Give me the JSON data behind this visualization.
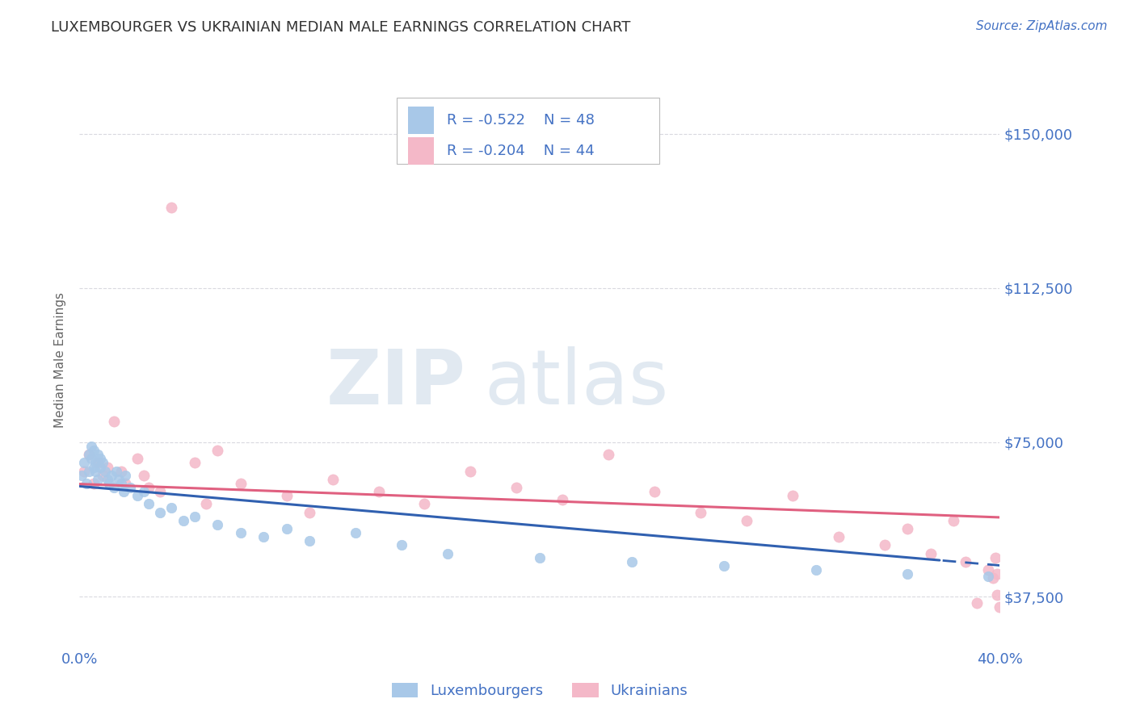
{
  "title": "LUXEMBOURGER VS UKRAINIAN MEDIAN MALE EARNINGS CORRELATION CHART",
  "source": "Source: ZipAtlas.com",
  "ylabel": "Median Male Earnings",
  "watermark_zip": "ZIP",
  "watermark_atlas": "atlas",
  "xlim": [
    0.0,
    0.4
  ],
  "ylim": [
    25000,
    165000
  ],
  "yticks": [
    37500,
    75000,
    112500,
    150000
  ],
  "ytick_labels": [
    "$37,500",
    "$75,000",
    "$112,500",
    "$150,000"
  ],
  "xticks": [
    0.0,
    0.05,
    0.1,
    0.15,
    0.2,
    0.25,
    0.3,
    0.35,
    0.4
  ],
  "blue_color": "#a8c8e8",
  "pink_color": "#f4b8c8",
  "blue_line": "#3060b0",
  "pink_line": "#e06080",
  "axis_color": "#4472c4",
  "legend_R1": "R = -0.522",
  "legend_N1": "N = 48",
  "legend_R2": "R = -0.204",
  "legend_N2": "N = 44",
  "legend_label1": "Luxembourgers",
  "legend_label2": "Ukrainians",
  "lux_x": [
    0.001,
    0.002,
    0.003,
    0.004,
    0.004,
    0.005,
    0.005,
    0.006,
    0.006,
    0.007,
    0.007,
    0.008,
    0.008,
    0.009,
    0.009,
    0.01,
    0.011,
    0.012,
    0.013,
    0.014,
    0.015,
    0.016,
    0.017,
    0.018,
    0.019,
    0.02,
    0.022,
    0.025,
    0.028,
    0.03,
    0.035,
    0.04,
    0.045,
    0.05,
    0.06,
    0.07,
    0.08,
    0.09,
    0.1,
    0.12,
    0.14,
    0.16,
    0.2,
    0.24,
    0.28,
    0.32,
    0.36,
    0.395
  ],
  "lux_y": [
    67000,
    70000,
    65000,
    72000,
    68000,
    71000,
    74000,
    69000,
    73000,
    70000,
    68000,
    72000,
    66000,
    71000,
    69000,
    70000,
    68000,
    66000,
    65000,
    67000,
    64000,
    68000,
    66000,
    65000,
    63000,
    67000,
    64000,
    62000,
    63000,
    60000,
    58000,
    59000,
    56000,
    57000,
    55000,
    53000,
    52000,
    54000,
    51000,
    53000,
    50000,
    48000,
    47000,
    46000,
    45000,
    44000,
    43000,
    42500
  ],
  "ukr_x": [
    0.002,
    0.004,
    0.006,
    0.008,
    0.01,
    0.012,
    0.015,
    0.018,
    0.02,
    0.025,
    0.028,
    0.03,
    0.035,
    0.04,
    0.05,
    0.055,
    0.06,
    0.07,
    0.09,
    0.1,
    0.11,
    0.13,
    0.15,
    0.17,
    0.19,
    0.21,
    0.23,
    0.25,
    0.27,
    0.29,
    0.31,
    0.33,
    0.35,
    0.36,
    0.37,
    0.38,
    0.385,
    0.39,
    0.395,
    0.397,
    0.398,
    0.399,
    0.399,
    0.4
  ],
  "ukr_y": [
    68000,
    72000,
    65000,
    70000,
    67000,
    69000,
    80000,
    68000,
    65000,
    71000,
    67000,
    64000,
    63000,
    132000,
    70000,
    60000,
    73000,
    65000,
    62000,
    58000,
    66000,
    63000,
    60000,
    68000,
    64000,
    61000,
    72000,
    63000,
    58000,
    56000,
    62000,
    52000,
    50000,
    54000,
    48000,
    56000,
    46000,
    36000,
    44000,
    42000,
    47000,
    43000,
    38000,
    35000
  ],
  "background_color": "#ffffff",
  "grid_color": "#d0d0d8"
}
